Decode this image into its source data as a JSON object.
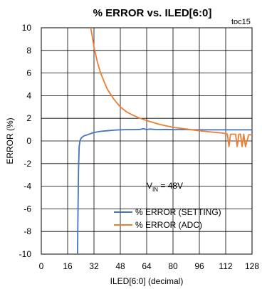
{
  "chart_data": {
    "type": "line",
    "title": "% ERROR vs. ILED[6:0]",
    "tag": "toc15",
    "xlabel": "ILED[6:0] (decimal)",
    "ylabel": "ERROR (%)",
    "xlim": [
      0,
      128
    ],
    "ylim": [
      -10,
      10
    ],
    "x_ticks": [
      0,
      16,
      32,
      48,
      64,
      80,
      96,
      112,
      128
    ],
    "y_ticks": [
      10,
      8,
      6,
      4,
      2,
      0,
      -2,
      -4,
      -6,
      -8,
      -10
    ],
    "grid": true,
    "legend_placement": "lower-right",
    "annotation": {
      "main": "V",
      "sub": "IN",
      "rest": " = 48V"
    },
    "series": [
      {
        "name": "% ERROR (SETTING)",
        "color": "#4472C4",
        "x": [
          22,
          22.3,
          22.6,
          23,
          23.5,
          24,
          25,
          26,
          28,
          30,
          32,
          36,
          40,
          44,
          48,
          52,
          56,
          60,
          62,
          64,
          66,
          70,
          76,
          80,
          88,
          96,
          104,
          112,
          120,
          128
        ],
        "y": [
          -10,
          -6,
          -2.5,
          -0.5,
          0,
          0.2,
          0.35,
          0.45,
          0.55,
          0.65,
          0.75,
          0.85,
          0.9,
          0.95,
          0.98,
          1.0,
          1.0,
          1.02,
          1.08,
          1.0,
          1.05,
          1.0,
          1.02,
          1.0,
          1.0,
          0.98,
          0.98,
          0.98,
          0.98,
          0.98
        ]
      },
      {
        "name": "% ERROR (ADC)",
        "color": "#ED7D31",
        "x": [
          30,
          31,
          32,
          34,
          36,
          40,
          44,
          48,
          52,
          56,
          60,
          64,
          72,
          80,
          88,
          96,
          104,
          110,
          112,
          113,
          114,
          115,
          116,
          118,
          119,
          120,
          121,
          122,
          123,
          124,
          126,
          128
        ],
        "y": [
          10,
          9.2,
          8.3,
          7.0,
          6.0,
          4.6,
          3.7,
          3.0,
          2.55,
          2.25,
          2.0,
          1.8,
          1.45,
          1.2,
          1.05,
          0.9,
          0.78,
          0.7,
          0.65,
          0.6,
          -0.5,
          0.6,
          0.6,
          0.6,
          -0.5,
          0.6,
          0.6,
          -0.5,
          0.6,
          -0.5,
          0.55,
          0.55
        ]
      }
    ]
  }
}
